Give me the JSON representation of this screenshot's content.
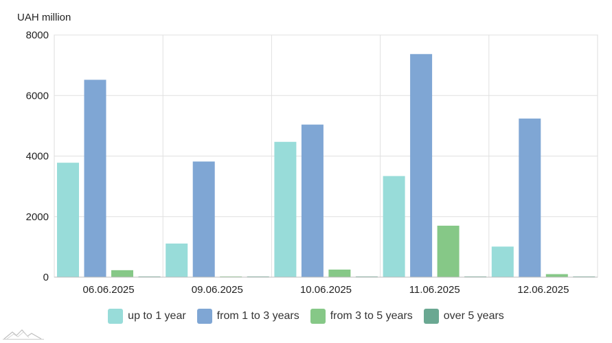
{
  "chart_data": {
    "type": "bar",
    "unit_label": "UAH million",
    "categories": [
      "06.06.2025",
      "09.06.2025",
      "10.06.2025",
      "11.06.2025",
      "12.06.2025"
    ],
    "series": [
      {
        "name": "up to 1 year",
        "color": "#98dcd9",
        "values": [
          3780,
          1110,
          4470,
          3340,
          1010
        ]
      },
      {
        "name": "from 1 to 3 years",
        "color": "#7fa6d4",
        "values": [
          6520,
          3820,
          5040,
          7370,
          5240
        ]
      },
      {
        "name": "from 3 to 5 years",
        "color": "#86c887",
        "values": [
          230,
          10,
          250,
          1700,
          100
        ]
      },
      {
        "name": "over 5 years",
        "color": "#6aa892",
        "values": [
          10,
          10,
          10,
          10,
          10
        ]
      }
    ],
    "y_ticks": [
      "0",
      "2000",
      "4000",
      "6000",
      "8000"
    ],
    "ylim": [
      0,
      8000
    ],
    "grid": true,
    "legend_position": "bottom"
  }
}
